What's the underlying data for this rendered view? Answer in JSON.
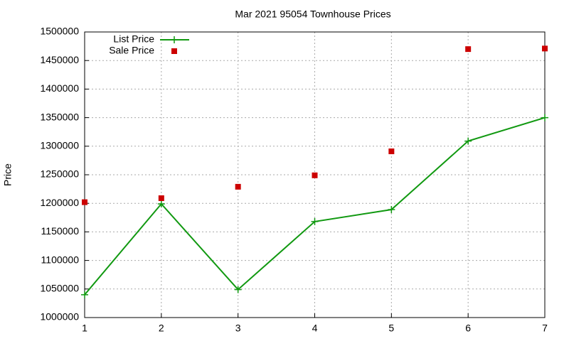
{
  "chart_data": {
    "type": "line",
    "title": "Mar 2021 95054 Townhouse Prices",
    "y_label": "Price",
    "x": [
      1,
      2,
      3,
      4,
      5,
      6,
      7
    ],
    "series": [
      {
        "name": "List Price",
        "color": "#119911",
        "style": "linespoints",
        "values": [
          1040000,
          1199000,
          1049000,
          1168000,
          1189000,
          1309000,
          1350000
        ]
      },
      {
        "name": "Sale Price",
        "color": "#cc0000",
        "style": "points",
        "values": [
          1202000,
          1209000,
          1229000,
          1249000,
          1291000,
          1470000,
          1471000
        ]
      }
    ],
    "xlim": [
      1,
      7
    ],
    "xticks": [
      1,
      2,
      3,
      4,
      5,
      6,
      7
    ],
    "ylim": [
      1000000,
      1500000
    ],
    "yticks": [
      1000000,
      1050000,
      1100000,
      1150000,
      1200000,
      1250000,
      1300000,
      1350000,
      1400000,
      1450000,
      1500000
    ],
    "grid": true,
    "legend": "top-left"
  }
}
